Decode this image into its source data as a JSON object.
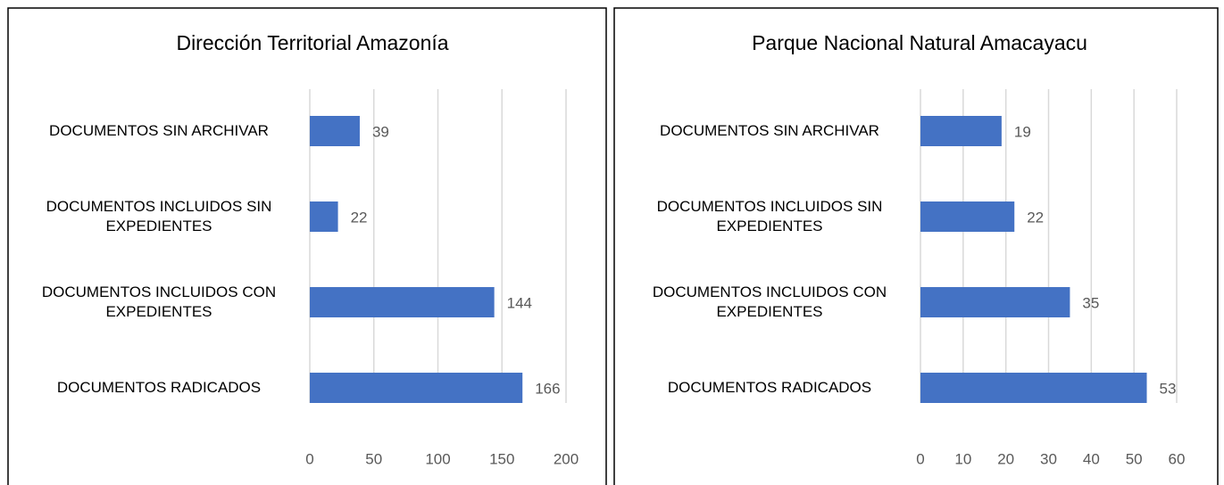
{
  "chart_data": [
    {
      "type": "bar",
      "orientation": "horizontal",
      "title": "Dirección Territorial Amazonía",
      "categories": [
        "DOCUMENTOS SIN ARCHIVAR",
        "DOCUMENTOS INCLUIDOS SIN EXPEDIENTES",
        "DOCUMENTOS INCLUIDOS CON EXPEDIENTES",
        "DOCUMENTOS RADICADOS"
      ],
      "values": [
        39,
        22,
        144,
        166
      ],
      "color": "#4472c4",
      "xlim": [
        0,
        200
      ],
      "xticks": [
        0,
        50,
        100,
        150,
        200
      ],
      "grid": true
    },
    {
      "type": "bar",
      "orientation": "horizontal",
      "title": "Parque Nacional Natural Amacayacu",
      "categories": [
        "DOCUMENTOS SIN ARCHIVAR",
        "DOCUMENTOS INCLUIDOS SIN EXPEDIENTES",
        "DOCUMENTOS INCLUIDOS CON EXPEDIENTES",
        "DOCUMENTOS RADICADOS"
      ],
      "values": [
        19,
        22,
        35,
        53
      ],
      "color": "#4472c4",
      "xlim": [
        0,
        60
      ],
      "xticks": [
        0,
        10,
        20,
        30,
        40,
        50,
        60
      ],
      "grid": true
    }
  ]
}
